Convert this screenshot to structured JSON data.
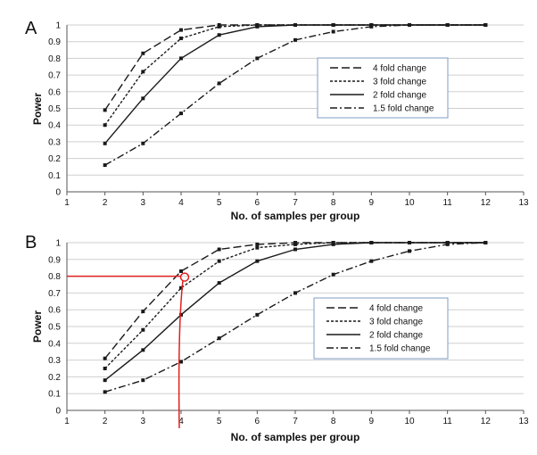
{
  "colors": {
    "series": "#1a1a1a",
    "grid": "#cfcfcf",
    "legend_border": "#7f9cc4",
    "annotation": "#e02020"
  },
  "chart_data": [
    {
      "panel": "A",
      "type": "line",
      "xlabel": "No. of samples per group",
      "ylabel": "Power",
      "xlim": [
        1,
        13
      ],
      "ylim": [
        0,
        1
      ],
      "xticks": [
        "1",
        "2",
        "3",
        "4",
        "5",
        "6",
        "7",
        "8",
        "9",
        "10",
        "11",
        "12",
        "13"
      ],
      "yticks": [
        "0",
        "0.1",
        "0.2",
        "0.3",
        "0.4",
        "0.5",
        "0.6",
        "0.7",
        "0.8",
        "0.9",
        "1"
      ],
      "grid": "horizontal",
      "legend": "right",
      "x": [
        2,
        3,
        4,
        5,
        6,
        7,
        8,
        9,
        10,
        11,
        12
      ],
      "series": [
        {
          "name": "4 fold change",
          "dash": "long-dash",
          "values": [
            0.49,
            0.83,
            0.97,
            1,
            1,
            1,
            1,
            1,
            1,
            1,
            1
          ]
        },
        {
          "name": "3 fold change",
          "dash": "short-dash",
          "values": [
            0.4,
            0.72,
            0.92,
            0.99,
            1,
            1,
            1,
            1,
            1,
            1,
            1
          ]
        },
        {
          "name": "2 fold change",
          "dash": "solid",
          "values": [
            0.29,
            0.56,
            0.8,
            0.94,
            0.99,
            1,
            1,
            1,
            1,
            1,
            1
          ]
        },
        {
          "name": "1.5 fold change",
          "dash": "dash-dot",
          "values": [
            0.16,
            0.29,
            0.47,
            0.65,
            0.8,
            0.91,
            0.96,
            0.99,
            1,
            1,
            1
          ]
        }
      ]
    },
    {
      "panel": "B",
      "type": "line",
      "xlabel": "No. of samples per group",
      "ylabel": "Power",
      "xlim": [
        1,
        13
      ],
      "ylim": [
        0,
        1
      ],
      "xticks": [
        "1",
        "2",
        "3",
        "4",
        "5",
        "6",
        "7",
        "8",
        "9",
        "10",
        "11",
        "12",
        "13"
      ],
      "yticks": [
        "0",
        "0.1",
        "0.2",
        "0.3",
        "0.4",
        "0.5",
        "0.6",
        "0.7",
        "0.8",
        "0.9",
        "1"
      ],
      "grid": "horizontal",
      "legend": "right",
      "x": [
        2,
        3,
        4,
        5,
        6,
        7,
        8,
        9,
        10,
        11,
        12
      ],
      "series": [
        {
          "name": "4 fold change",
          "dash": "long-dash",
          "values": [
            0.31,
            0.59,
            0.83,
            0.96,
            0.99,
            1,
            1,
            1,
            1,
            1,
            1
          ]
        },
        {
          "name": "3 fold change",
          "dash": "short-dash",
          "values": [
            0.25,
            0.48,
            0.73,
            0.89,
            0.97,
            0.99,
            1,
            1,
            1,
            1,
            1
          ]
        },
        {
          "name": "2 fold change",
          "dash": "solid",
          "values": [
            0.18,
            0.36,
            0.57,
            0.76,
            0.89,
            0.96,
            0.99,
            1,
            1,
            1,
            1
          ]
        },
        {
          "name": "1.5 fold change",
          "dash": "dash-dot",
          "values": [
            0.11,
            0.18,
            0.29,
            0.43,
            0.57,
            0.7,
            0.81,
            0.89,
            0.95,
            0.99,
            1
          ]
        }
      ],
      "annotation": {
        "x": 4,
        "y": 0.8
      }
    }
  ]
}
